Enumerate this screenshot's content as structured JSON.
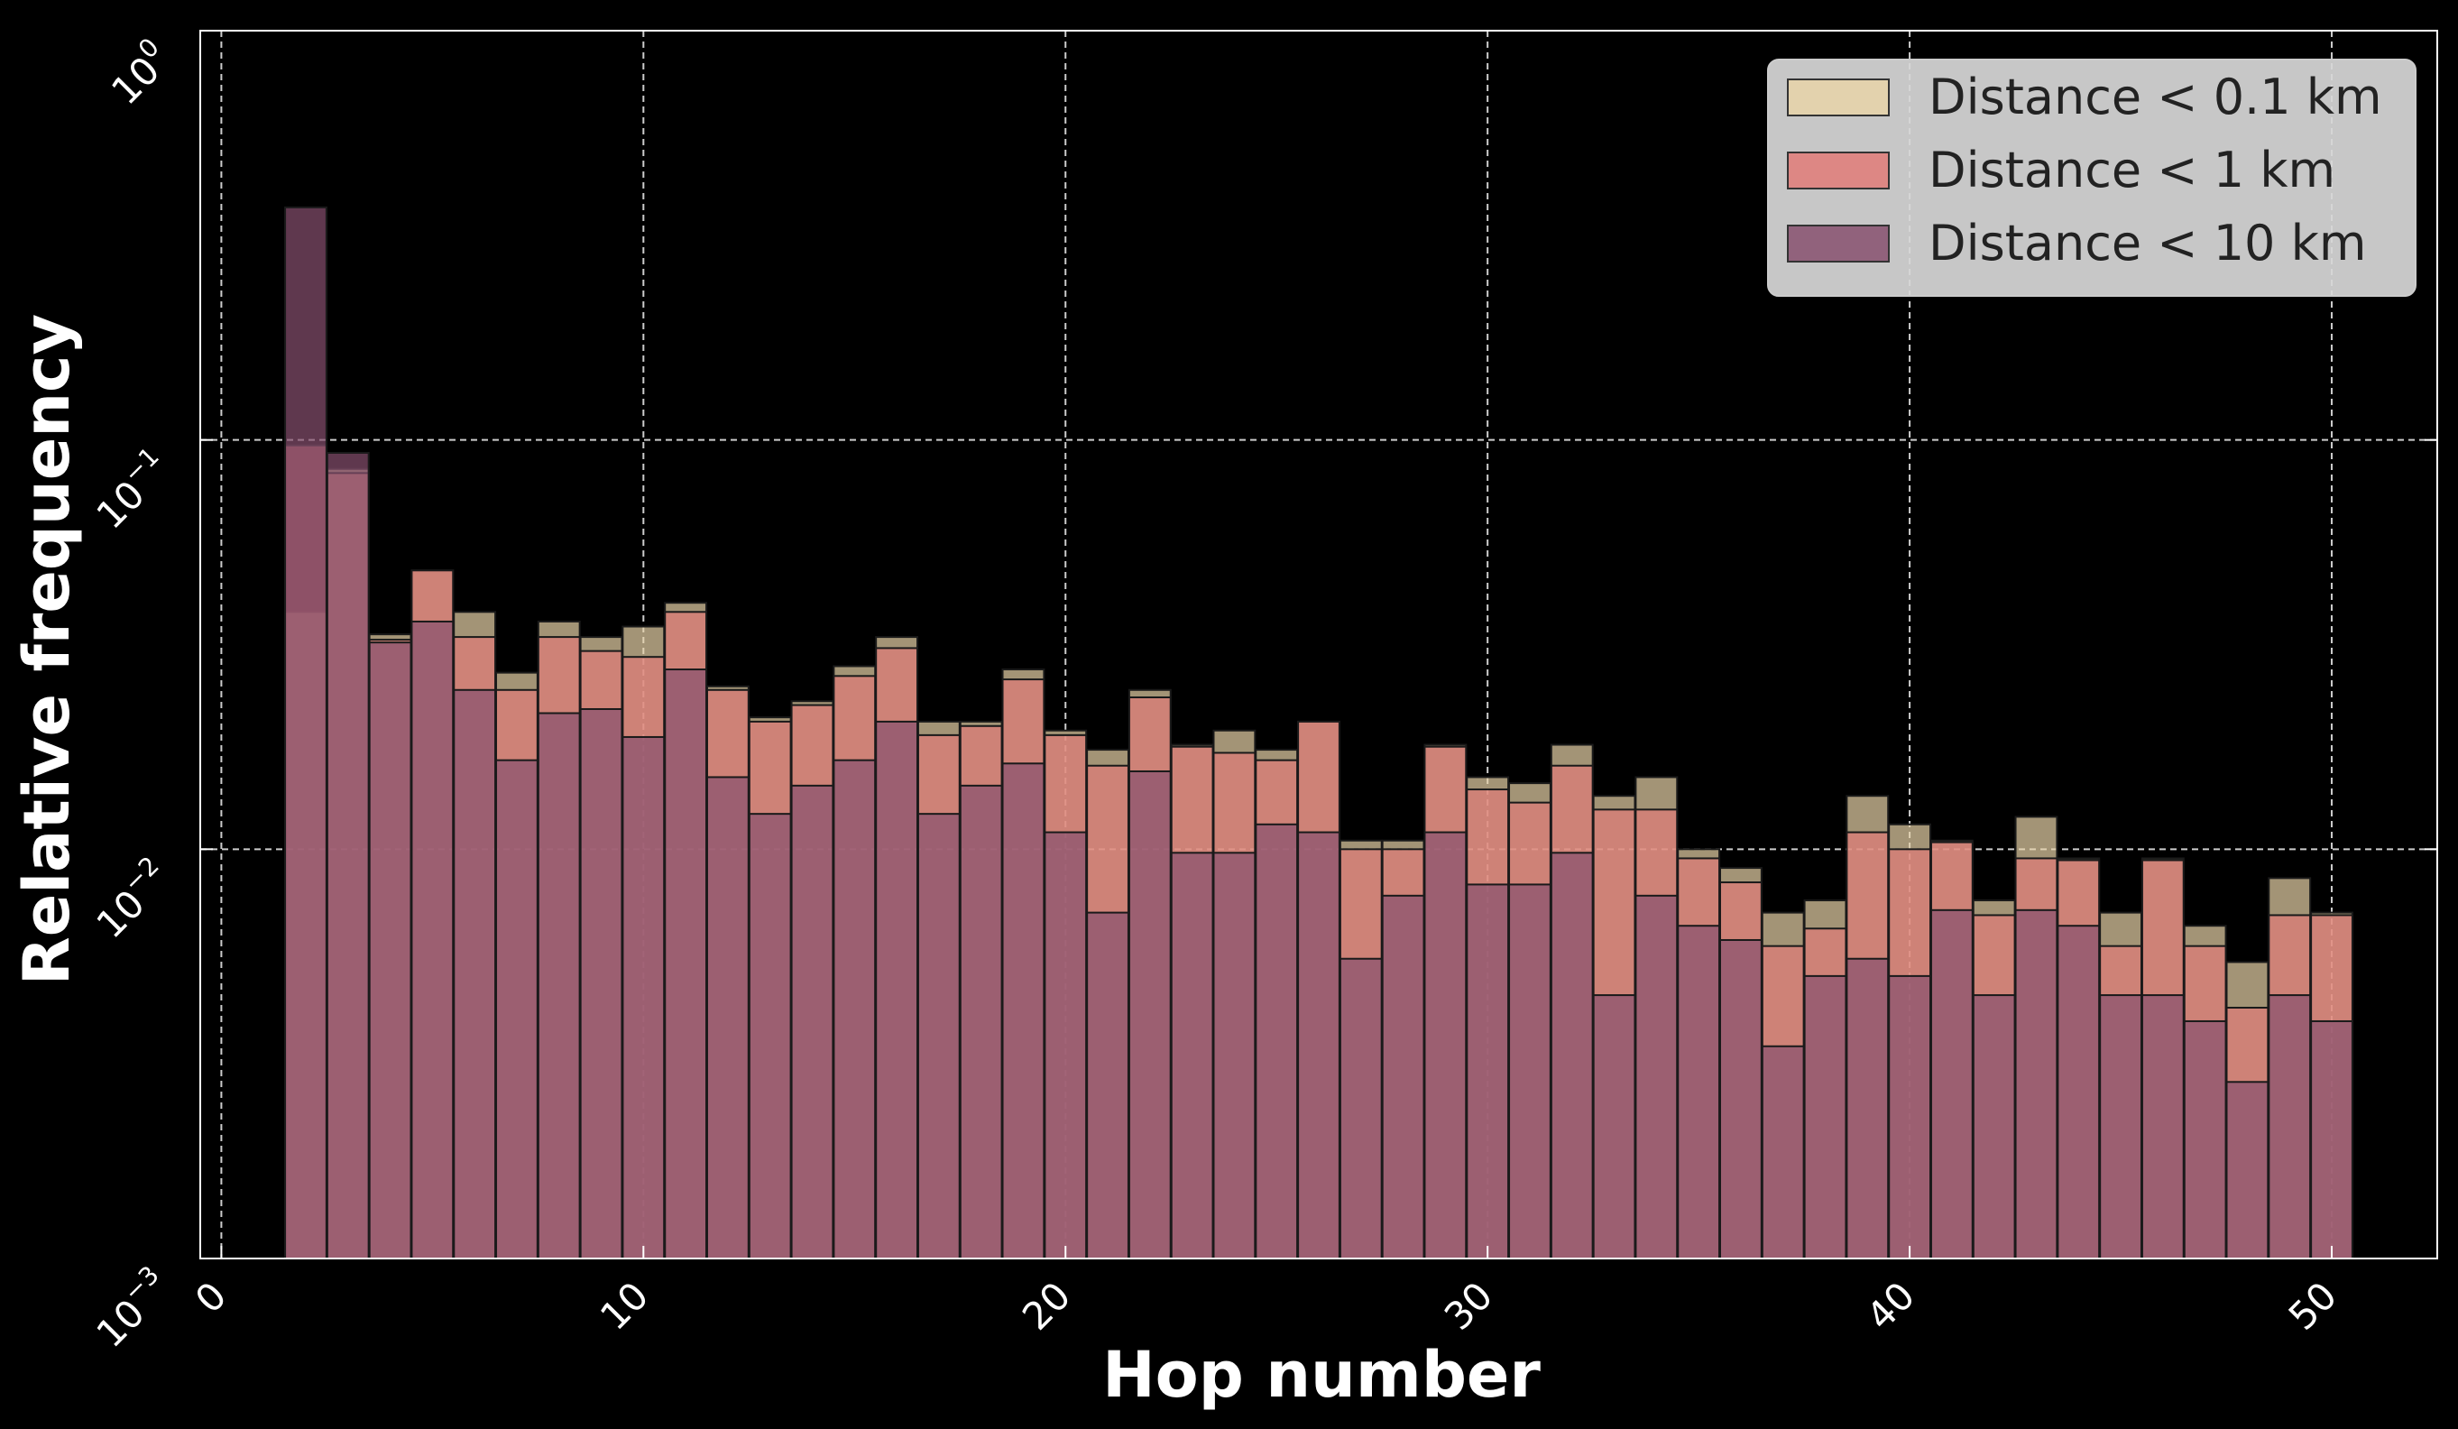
{
  "chart_data": {
    "type": "bar",
    "xlabel": "Hop number",
    "ylabel": "Relative frequency",
    "xlim": [
      -0.5,
      52.5
    ],
    "ylim": [
      0.001,
      1
    ],
    "yscale": "log",
    "x_ticks": [
      0,
      10,
      20,
      30,
      40,
      50
    ],
    "x_tick_labels": [
      "0",
      "10",
      "20",
      "30",
      "40",
      "50"
    ],
    "y_ticks": [
      0.001,
      0.01,
      0.1,
      1
    ],
    "y_tick_labels": [
      {
        "base": "10",
        "exp": "−3"
      },
      {
        "base": "10",
        "exp": "−2"
      },
      {
        "base": "10",
        "exp": "−1"
      },
      {
        "base": "10",
        "exp": "0"
      }
    ],
    "grid": true,
    "legend_position": "top-right",
    "hops": [
      2,
      3,
      4,
      5,
      6,
      7,
      8,
      9,
      10,
      11,
      12,
      13,
      14,
      15,
      16,
      17,
      18,
      19,
      20,
      21,
      22,
      23,
      24,
      25,
      26,
      27,
      28,
      29,
      30,
      31,
      32,
      33,
      34,
      35,
      36,
      37,
      38,
      39,
      40,
      41,
      42,
      43,
      44,
      45,
      46,
      47,
      48,
      49,
      50
    ],
    "series": [
      {
        "name": "Distance < 0.1 km",
        "color": "#e8d3a8",
        "values": [
          0.038,
          0.085,
          0.0335,
          0.048,
          0.038,
          0.027,
          0.036,
          0.033,
          0.035,
          0.04,
          0.025,
          0.021,
          0.023,
          0.028,
          0.033,
          0.0205,
          0.0205,
          0.0275,
          0.0195,
          0.0175,
          0.0245,
          0.018,
          0.0195,
          0.0175,
          0.0205,
          0.0105,
          0.0105,
          0.018,
          0.015,
          0.0145,
          0.018,
          0.0135,
          0.015,
          0.01,
          0.009,
          0.007,
          0.0075,
          0.0135,
          0.0115,
          0.0105,
          0.0075,
          0.012,
          0.0095,
          0.007,
          0.0095,
          0.0065,
          0.0053,
          0.0085,
          0.007
        ]
      },
      {
        "name": "Distance < 1 km",
        "color": "#e07b78",
        "values": [
          0.097,
          0.083,
          0.0325,
          0.048,
          0.033,
          0.0245,
          0.033,
          0.0305,
          0.0295,
          0.038,
          0.0245,
          0.0205,
          0.0225,
          0.0265,
          0.031,
          0.019,
          0.02,
          0.026,
          0.019,
          0.016,
          0.0235,
          0.0178,
          0.0172,
          0.0165,
          0.0205,
          0.01,
          0.01,
          0.0178,
          0.014,
          0.013,
          0.016,
          0.0125,
          0.0125,
          0.0095,
          0.0083,
          0.0058,
          0.0064,
          0.011,
          0.01,
          0.0104,
          0.0069,
          0.0095,
          0.0094,
          0.0058,
          0.0094,
          0.0058,
          0.0041,
          0.0069,
          0.0069
        ]
      },
      {
        "name": "Distance < 10 km",
        "color": "#87506f",
        "values": [
          0.37,
          0.093,
          0.032,
          0.036,
          0.0245,
          0.0165,
          0.0215,
          0.022,
          0.0188,
          0.0275,
          0.015,
          0.0122,
          0.0143,
          0.0165,
          0.0205,
          0.0122,
          0.0143,
          0.0162,
          0.011,
          0.007,
          0.0155,
          0.0098,
          0.0098,
          0.0115,
          0.011,
          0.0054,
          0.0077,
          0.011,
          0.0082,
          0.0082,
          0.0098,
          0.0044,
          0.0077,
          0.0065,
          0.006,
          0.0033,
          0.0049,
          0.0054,
          0.0049,
          0.0071,
          0.0044,
          0.0071,
          0.0065,
          0.0044,
          0.0044,
          0.0038,
          0.0027,
          0.0044,
          0.0038
        ]
      }
    ]
  }
}
